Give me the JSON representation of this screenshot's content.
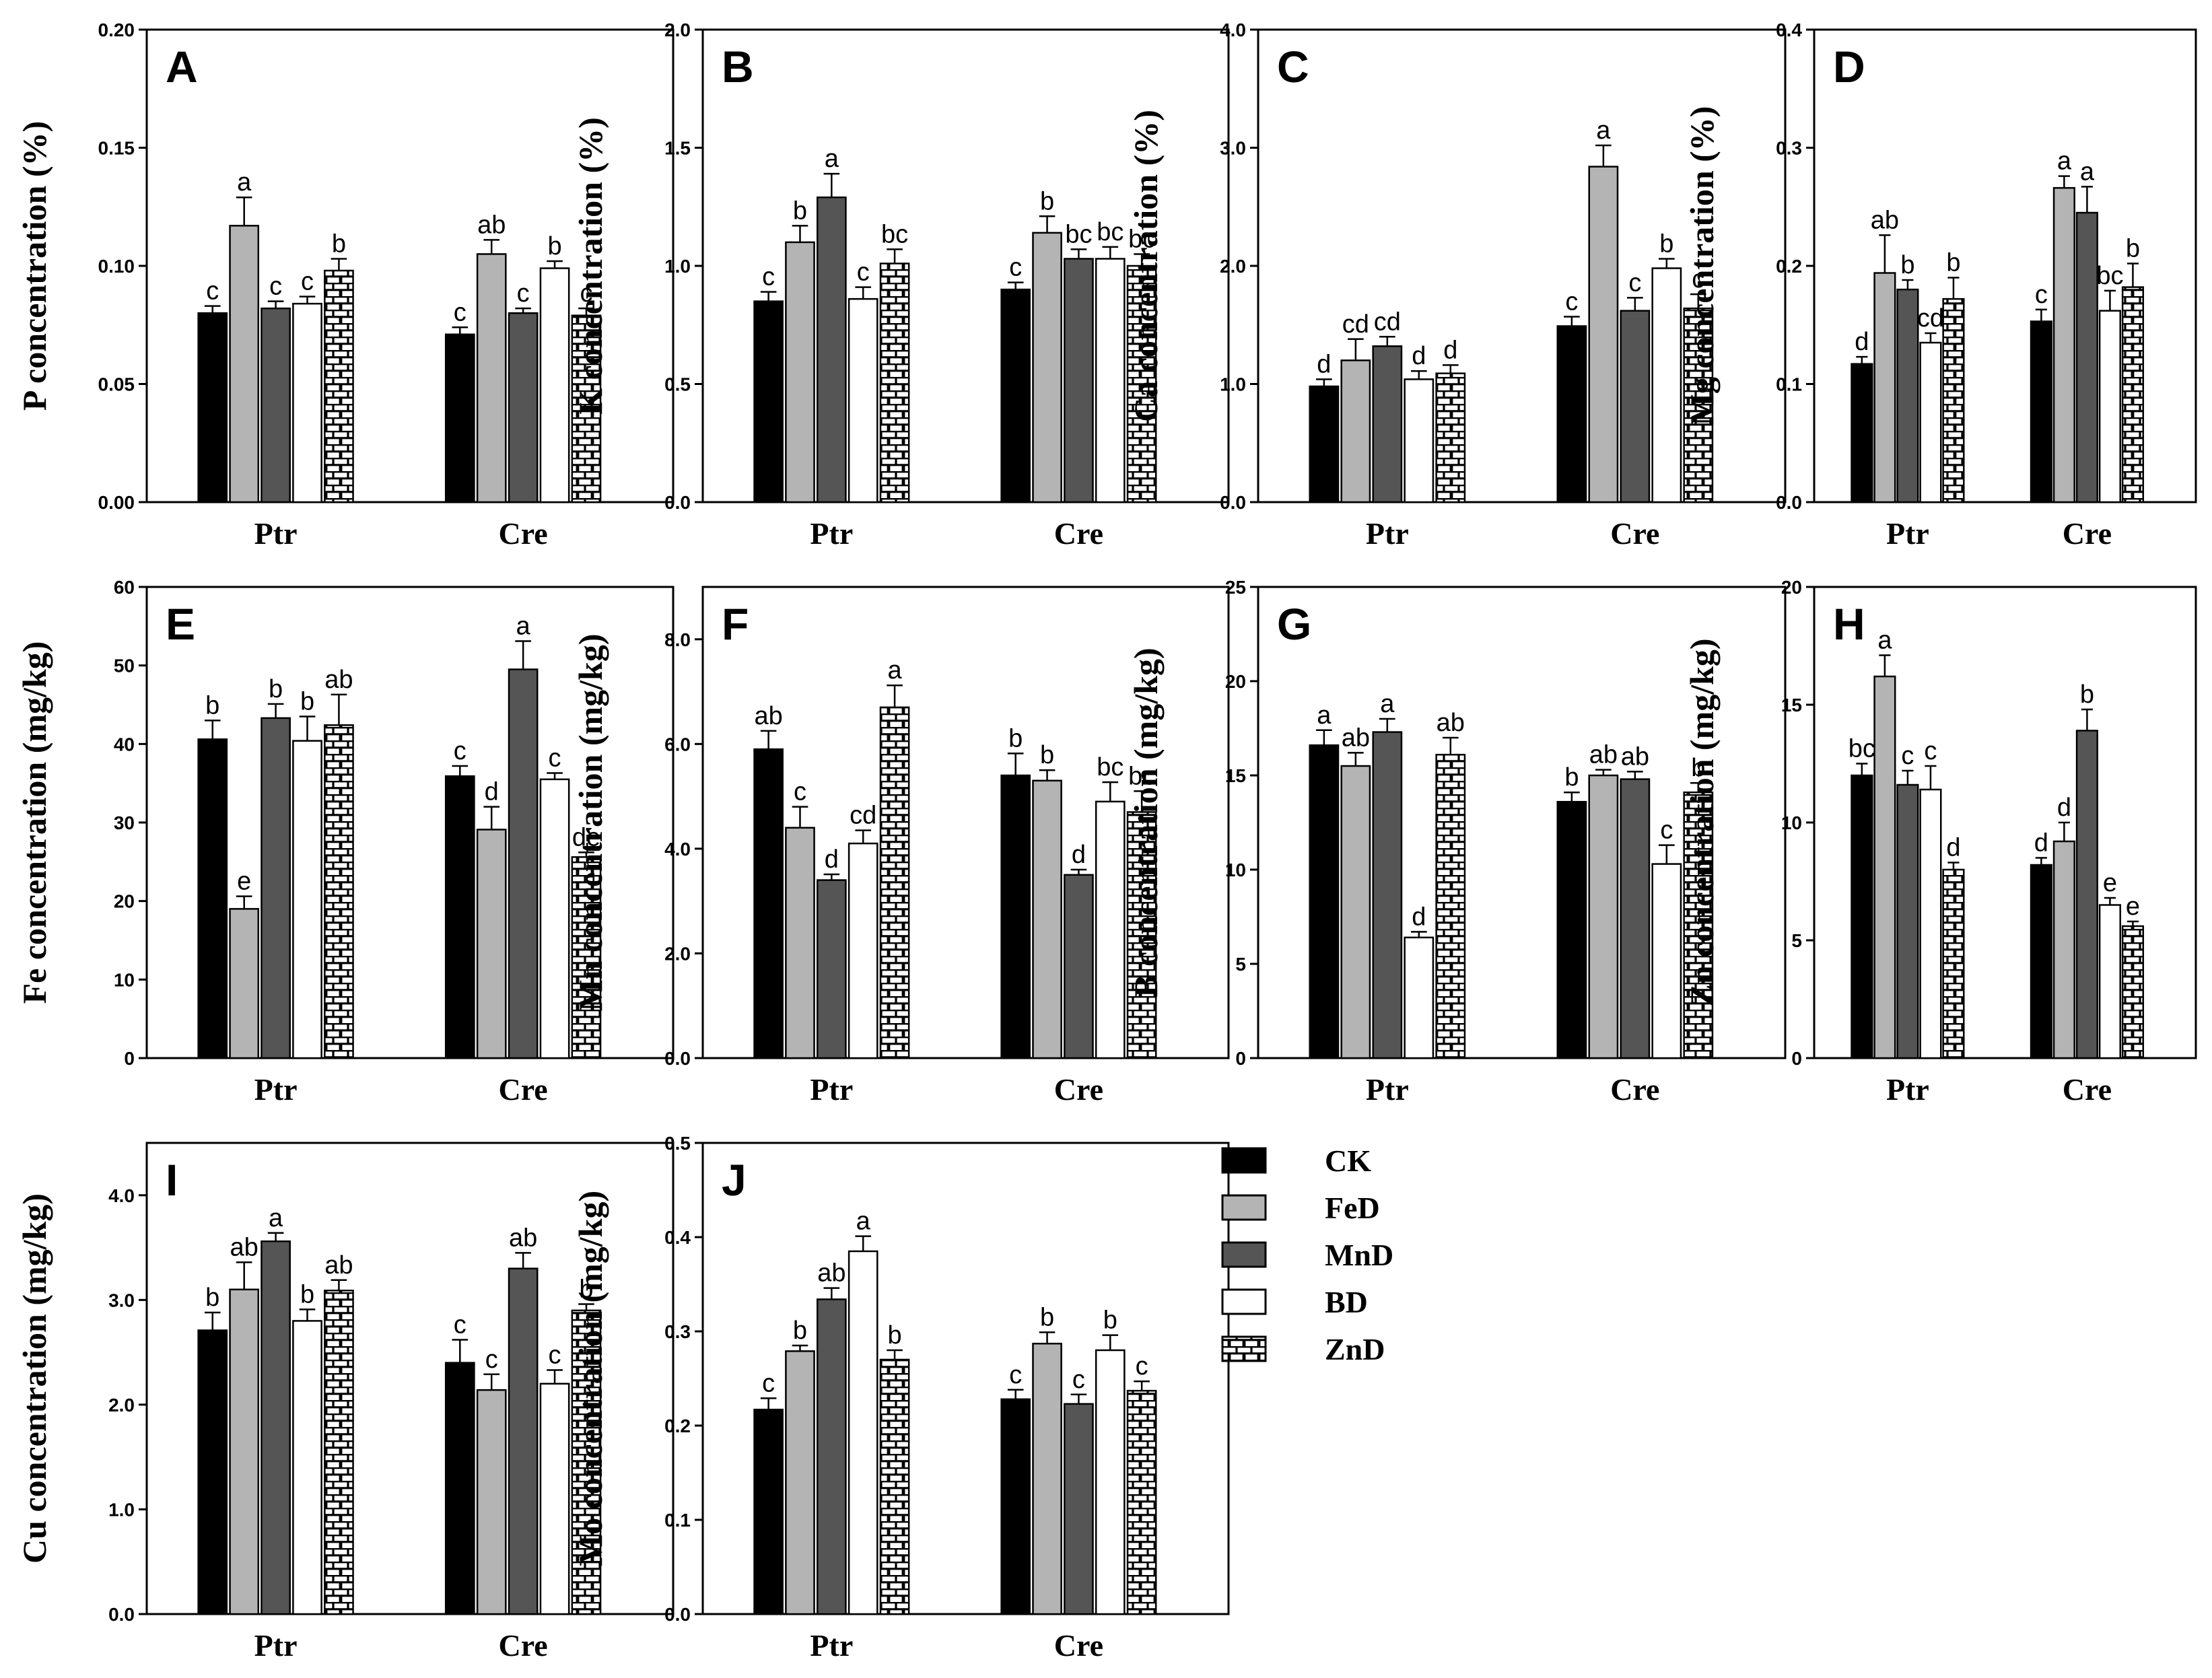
{
  "chart_data": [
    {
      "type": "bar",
      "panel": "A",
      "ylabel": "P concentration (%)",
      "categories": [
        "Ptr",
        "Cre"
      ],
      "ylim": [
        0,
        0.2
      ],
      "yticks": [
        "0.00",
        "0.05",
        "0.10",
        "0.15",
        "0.20"
      ],
      "series": [
        {
          "name": "CK",
          "values": [
            0.08,
            0.071
          ],
          "err": [
            0.003,
            0.003
          ],
          "sig": [
            "c",
            "c"
          ]
        },
        {
          "name": "FeD",
          "values": [
            0.117,
            0.105
          ],
          "err": [
            0.012,
            0.006
          ],
          "sig": [
            "a",
            "ab"
          ]
        },
        {
          "name": "MnD",
          "values": [
            0.082,
            0.08
          ],
          "err": [
            0.003,
            0.002
          ],
          "sig": [
            "c",
            "c"
          ]
        },
        {
          "name": "BD",
          "values": [
            0.084,
            0.099
          ],
          "err": [
            0.003,
            0.003
          ],
          "sig": [
            "c",
            "b"
          ]
        },
        {
          "name": "ZnD",
          "values": [
            0.098,
            0.079
          ],
          "err": [
            0.005,
            0.003
          ],
          "sig": [
            "b",
            "c"
          ]
        }
      ]
    },
    {
      "type": "bar",
      "panel": "B",
      "ylabel": "K concentration (%)",
      "categories": [
        "Ptr",
        "Cre"
      ],
      "ylim": [
        0,
        2.0
      ],
      "yticks": [
        "0.0",
        "0.5",
        "1.0",
        "1.5",
        "2.0"
      ],
      "series": [
        {
          "name": "CK",
          "values": [
            0.85,
            0.9
          ],
          "err": [
            0.04,
            0.03
          ],
          "sig": [
            "c",
            "c"
          ]
        },
        {
          "name": "FeD",
          "values": [
            1.1,
            1.14
          ],
          "err": [
            0.07,
            0.07
          ],
          "sig": [
            "b",
            "b"
          ]
        },
        {
          "name": "MnD",
          "values": [
            1.29,
            1.03
          ],
          "err": [
            0.1,
            0.04
          ],
          "sig": [
            "a",
            "bc"
          ]
        },
        {
          "name": "BD",
          "values": [
            0.86,
            1.03
          ],
          "err": [
            0.05,
            0.05
          ],
          "sig": [
            "c",
            "bc"
          ]
        },
        {
          "name": "ZnD",
          "values": [
            1.01,
            1.0
          ],
          "err": [
            0.06,
            0.05
          ],
          "sig": [
            "bc",
            "bc"
          ]
        }
      ]
    },
    {
      "type": "bar",
      "panel": "C",
      "ylabel": "Ca concentration (%)",
      "categories": [
        "Ptr",
        "Cre"
      ],
      "ylim": [
        0,
        4.0
      ],
      "yticks": [
        "0.0",
        "1.0",
        "2.0",
        "3.0",
        "4.0"
      ],
      "series": [
        {
          "name": "CK",
          "values": [
            0.98,
            1.49
          ],
          "err": [
            0.06,
            0.08
          ],
          "sig": [
            "d",
            "c"
          ]
        },
        {
          "name": "FeD",
          "values": [
            1.2,
            2.84
          ],
          "err": [
            0.18,
            0.18
          ],
          "sig": [
            "cd",
            "a"
          ]
        },
        {
          "name": "MnD",
          "values": [
            1.32,
            1.62
          ],
          "err": [
            0.08,
            0.11
          ],
          "sig": [
            "cd",
            "c"
          ]
        },
        {
          "name": "BD",
          "values": [
            1.04,
            1.98
          ],
          "err": [
            0.07,
            0.08
          ],
          "sig": [
            "d",
            "b"
          ]
        },
        {
          "name": "ZnD",
          "values": [
            1.09,
            1.64
          ],
          "err": [
            0.07,
            0.12
          ],
          "sig": [
            "d",
            "c"
          ]
        }
      ]
    },
    {
      "type": "bar",
      "panel": "D",
      "ylabel": "Mg concentration (%)",
      "categories": [
        "Ptr",
        "Cre"
      ],
      "ylim": [
        0,
        0.4
      ],
      "yticks": [
        "0.0",
        "0.1",
        "0.2",
        "0.3",
        "0.4"
      ],
      "series": [
        {
          "name": "CK",
          "values": [
            0.117,
            0.153
          ],
          "err": [
            0.006,
            0.01
          ],
          "sig": [
            "d",
            "c"
          ]
        },
        {
          "name": "FeD",
          "values": [
            0.194,
            0.266
          ],
          "err": [
            0.032,
            0.01
          ],
          "sig": [
            "ab",
            "a"
          ]
        },
        {
          "name": "MnD",
          "values": [
            0.18,
            0.245
          ],
          "err": [
            0.008,
            0.022
          ],
          "sig": [
            "b",
            "a"
          ]
        },
        {
          "name": "BD",
          "values": [
            0.135,
            0.162
          ],
          "err": [
            0.008,
            0.017
          ],
          "sig": [
            "cd",
            "bc"
          ]
        },
        {
          "name": "ZnD",
          "values": [
            0.172,
            0.182
          ],
          "err": [
            0.018,
            0.02
          ],
          "sig": [
            "b",
            "b"
          ]
        }
      ]
    },
    {
      "type": "bar",
      "panel": "E",
      "ylabel": "Fe concentration (mg/kg)",
      "categories": [
        "Ptr",
        "Cre"
      ],
      "ylim": [
        0,
        60
      ],
      "yticks": [
        "0",
        "10",
        "20",
        "30",
        "40",
        "50",
        "60"
      ],
      "series": [
        {
          "name": "CK",
          "values": [
            40.6,
            35.9
          ],
          "err": [
            2.4,
            1.3
          ],
          "sig": [
            "b",
            "c"
          ]
        },
        {
          "name": "FeD",
          "values": [
            19.0,
            29.1
          ],
          "err": [
            1.6,
            2.9
          ],
          "sig": [
            "e",
            "d"
          ]
        },
        {
          "name": "MnD",
          "values": [
            43.3,
            49.5
          ],
          "err": [
            1.8,
            3.6
          ],
          "sig": [
            "b",
            "a"
          ]
        },
        {
          "name": "BD",
          "values": [
            40.4,
            35.5
          ],
          "err": [
            3.1,
            0.8
          ],
          "sig": [
            "b",
            "c"
          ]
        },
        {
          "name": "ZnD",
          "values": [
            42.4,
            25.6
          ],
          "err": [
            3.9,
            0.6
          ],
          "sig": [
            "ab",
            "de"
          ]
        }
      ]
    },
    {
      "type": "bar",
      "panel": "F",
      "ylabel": "Mn concentration (mg/kg)",
      "categories": [
        "Ptr",
        "Cre"
      ],
      "ylim": [
        0,
        9
      ],
      "yticks": [
        "0.0",
        "2.0",
        "4.0",
        "6.0",
        "8.0"
      ],
      "series": [
        {
          "name": "CK",
          "values": [
            5.9,
            5.4
          ],
          "err": [
            0.35,
            0.42
          ],
          "sig": [
            "ab",
            "b"
          ]
        },
        {
          "name": "FeD",
          "values": [
            4.4,
            5.3
          ],
          "err": [
            0.4,
            0.2
          ],
          "sig": [
            "c",
            "b"
          ]
        },
        {
          "name": "MnD",
          "values": [
            3.4,
            3.5
          ],
          "err": [
            0.11,
            0.1
          ],
          "sig": [
            "d",
            "d"
          ]
        },
        {
          "name": "BD",
          "values": [
            4.1,
            4.9
          ],
          "err": [
            0.25,
            0.37
          ],
          "sig": [
            "cd",
            "bc"
          ]
        },
        {
          "name": "ZnD",
          "values": [
            6.7,
            4.7
          ],
          "err": [
            0.42,
            0.4
          ],
          "sig": [
            "a",
            "bc"
          ]
        }
      ]
    },
    {
      "type": "bar",
      "panel": "G",
      "ylabel": "B concentration (mg/kg)",
      "categories": [
        "Ptr",
        "Cre"
      ],
      "ylim": [
        0,
        25
      ],
      "yticks": [
        "0",
        "5",
        "10",
        "15",
        "20",
        "25"
      ],
      "series": [
        {
          "name": "CK",
          "values": [
            16.6,
            13.6
          ],
          "err": [
            0.8,
            0.5
          ],
          "sig": [
            "a",
            "b"
          ]
        },
        {
          "name": "FeD",
          "values": [
            15.5,
            15.0
          ],
          "err": [
            0.7,
            0.3
          ],
          "sig": [
            "ab",
            "ab"
          ]
        },
        {
          "name": "MnD",
          "values": [
            17.3,
            14.8
          ],
          "err": [
            0.7,
            0.4
          ],
          "sig": [
            "a",
            "ab"
          ]
        },
        {
          "name": "BD",
          "values": [
            6.4,
            10.3
          ],
          "err": [
            0.3,
            1.0
          ],
          "sig": [
            "d",
            "c"
          ]
        },
        {
          "name": "ZnD",
          "values": [
            16.1,
            14.1
          ],
          "err": [
            0.9,
            0.5
          ],
          "sig": [
            "ab",
            "b"
          ]
        }
      ]
    },
    {
      "type": "bar",
      "panel": "H",
      "ylabel": "Zn concentration (mg/kg)",
      "categories": [
        "Ptr",
        "Cre"
      ],
      "ylim": [
        0,
        20
      ],
      "yticks": [
        "0",
        "5",
        "10",
        "15",
        "20"
      ],
      "series": [
        {
          "name": "CK",
          "values": [
            12.0,
            8.2
          ],
          "err": [
            0.5,
            0.3
          ],
          "sig": [
            "bc",
            "d"
          ]
        },
        {
          "name": "FeD",
          "values": [
            16.2,
            9.2
          ],
          "err": [
            0.9,
            0.8
          ],
          "sig": [
            "a",
            "d"
          ]
        },
        {
          "name": "MnD",
          "values": [
            11.6,
            13.9
          ],
          "err": [
            0.6,
            0.9
          ],
          "sig": [
            "c",
            "b"
          ]
        },
        {
          "name": "BD",
          "values": [
            11.4,
            6.5
          ],
          "err": [
            1.0,
            0.3
          ],
          "sig": [
            "c",
            "e"
          ]
        },
        {
          "name": "ZnD",
          "values": [
            8.0,
            5.6
          ],
          "err": [
            0.3,
            0.2
          ],
          "sig": [
            "d",
            "e"
          ]
        }
      ]
    },
    {
      "type": "bar",
      "panel": "I",
      "ylabel": "Cu concentration (mg/kg)",
      "categories": [
        "Ptr",
        "Cre"
      ],
      "ylim": [
        0,
        4.5
      ],
      "yticks": [
        "0.0",
        "1.0",
        "2.0",
        "3.0",
        "4.0"
      ],
      "series": [
        {
          "name": "CK",
          "values": [
            2.71,
            2.4
          ],
          "err": [
            0.17,
            0.22
          ],
          "sig": [
            "b",
            "c"
          ]
        },
        {
          "name": "FeD",
          "values": [
            3.1,
            2.14
          ],
          "err": [
            0.26,
            0.15
          ],
          "sig": [
            "ab",
            "c"
          ]
        },
        {
          "name": "MnD",
          "values": [
            3.56,
            3.3
          ],
          "err": [
            0.08,
            0.15
          ],
          "sig": [
            "a",
            "ab"
          ]
        },
        {
          "name": "BD",
          "values": [
            2.8,
            2.2
          ],
          "err": [
            0.11,
            0.13
          ],
          "sig": [
            "b",
            "c"
          ]
        },
        {
          "name": "ZnD",
          "values": [
            3.09,
            2.9
          ],
          "err": [
            0.1,
            0.06
          ],
          "sig": [
            "ab",
            "b"
          ]
        }
      ]
    },
    {
      "type": "bar",
      "panel": "J",
      "ylabel": "Mo concentration (mg/kg)",
      "categories": [
        "Ptr",
        "Cre"
      ],
      "ylim": [
        0,
        0.5
      ],
      "yticks": [
        "0.0",
        "0.1",
        "0.2",
        "0.3",
        "0.4",
        "0.5"
      ],
      "series": [
        {
          "name": "CK",
          "values": [
            0.217,
            0.228
          ],
          "err": [
            0.012,
            0.01
          ],
          "sig": [
            "c",
            "c"
          ]
        },
        {
          "name": "FeD",
          "values": [
            0.279,
            0.287
          ],
          "err": [
            0.006,
            0.012
          ],
          "sig": [
            "b",
            "b"
          ]
        },
        {
          "name": "MnD",
          "values": [
            0.334,
            0.223
          ],
          "err": [
            0.012,
            0.01
          ],
          "sig": [
            "ab",
            "c"
          ]
        },
        {
          "name": "BD",
          "values": [
            0.385,
            0.28
          ],
          "err": [
            0.016,
            0.016
          ],
          "sig": [
            "a",
            "b"
          ]
        },
        {
          "name": "ZnD",
          "values": [
            0.27,
            0.237
          ],
          "err": [
            0.01,
            0.01
          ],
          "sig": [
            "b",
            "c"
          ]
        }
      ]
    }
  ],
  "legend": [
    {
      "label": "CK",
      "style": "black"
    },
    {
      "label": "FeD",
      "style": "lightgray"
    },
    {
      "label": "MnD",
      "style": "darkgray"
    },
    {
      "label": "BD",
      "style": "white"
    },
    {
      "label": "ZnD",
      "style": "brick"
    }
  ],
  "colors": {
    "CK": "#000000",
    "FeD": "#b4b4b4",
    "MnD": "#555555",
    "BD": "#ffffff",
    "ZnD": "brick-pattern"
  }
}
